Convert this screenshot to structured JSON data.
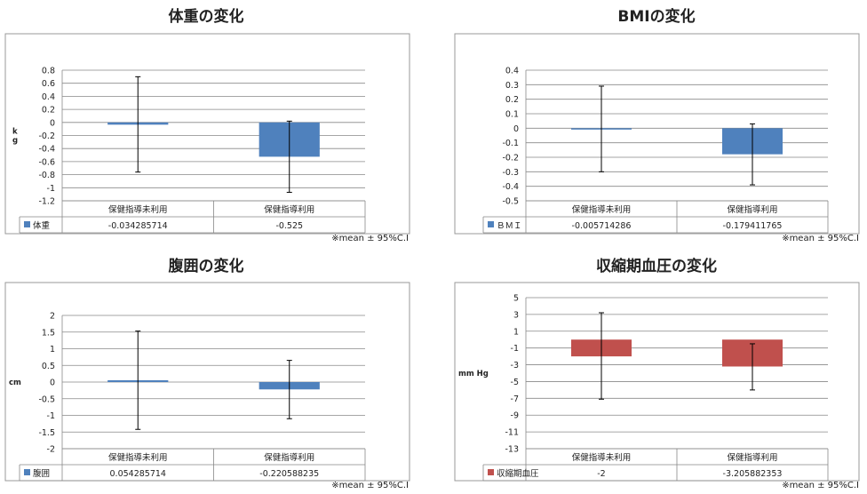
{
  "chart_data": [
    {
      "type": "bar",
      "title": "体重の変化",
      "ylabel": "k\ng",
      "categories": [
        "保健指導未利用",
        "保健指導利用"
      ],
      "series": [
        {
          "name": "体重",
          "values": [
            -0.034285714,
            -0.525
          ],
          "color": "#4f81bd"
        }
      ],
      "value_labels": [
        "-0.034285714",
        "-0.525"
      ],
      "error_bars": [
        {
          "low": -0.76,
          "high": 0.7
        },
        {
          "low": -1.07,
          "high": 0.02
        }
      ],
      "ylim": [
        -1.2,
        0.8
      ],
      "yticks": [
        0.8,
        0.6,
        0.4,
        0.2,
        0,
        -0.2,
        -0.4,
        -0.6,
        -0.8,
        -1,
        -1.2
      ],
      "ytick_labels": [
        "0.8",
        "0.6",
        "0.4",
        "0.2",
        "0",
        "-0.2",
        "-0.4",
        "-0.6",
        "-0.8",
        "-1",
        "-1.2"
      ],
      "grid": true,
      "legend": "data-table",
      "note": "※mean ± 95%C.I"
    },
    {
      "type": "bar",
      "title": "BMIの変化",
      "ylabel": "",
      "categories": [
        "保健指導未利用",
        "保健指導利用"
      ],
      "series": [
        {
          "name": "ＢＭＩ",
          "values": [
            -0.005714286,
            -0.179411765
          ],
          "color": "#4f81bd"
        }
      ],
      "value_labels": [
        "-0.005714286",
        "-0.179411765"
      ],
      "error_bars": [
        {
          "low": -0.3,
          "high": 0.29
        },
        {
          "low": -0.39,
          "high": 0.03
        }
      ],
      "ylim": [
        -0.5,
        0.4
      ],
      "yticks": [
        0.4,
        0.3,
        0.2,
        0.1,
        0,
        -0.1,
        -0.2,
        -0.3,
        -0.4,
        -0.5
      ],
      "ytick_labels": [
        "0.4",
        "0.3",
        "0.2",
        "0.1",
        "0",
        "-0.1",
        "-0.2",
        "-0.3",
        "-0.4",
        "-0.5"
      ],
      "grid": true,
      "legend": "data-table",
      "note": "※mean ± 95%C.I"
    },
    {
      "type": "bar",
      "title": "腹囲の変化",
      "ylabel": "cm",
      "categories": [
        "保健指導未利用",
        "保健指導利用"
      ],
      "series": [
        {
          "name": "腹囲",
          "values": [
            0.054285714,
            -0.220588235
          ],
          "color": "#4f81bd"
        }
      ],
      "value_labels": [
        "0.054285714",
        "-0.220588235"
      ],
      "error_bars": [
        {
          "low": -1.42,
          "high": 1.53
        },
        {
          "low": -1.1,
          "high": 0.65
        }
      ],
      "ylim": [
        -2,
        2
      ],
      "yticks": [
        2,
        1.5,
        1,
        0.5,
        0,
        -0.5,
        -1,
        -1.5,
        -2
      ],
      "ytick_labels": [
        "2",
        "1.5",
        "1",
        "0.5",
        "0",
        "-0.5",
        "-1",
        "-1.5",
        "-2"
      ],
      "grid": true,
      "legend": "data-table",
      "note": "※mean ± 95%C.I"
    },
    {
      "type": "bar",
      "title": "収縮期血圧の変化",
      "ylabel": "mm Hg",
      "categories": [
        "保健指導未利用",
        "保健指導利用"
      ],
      "series": [
        {
          "name": "収縮期血圧",
          "values": [
            -2,
            -3.205882353
          ],
          "color": "#c0504d"
        }
      ],
      "value_labels": [
        "-2",
        "-3.205882353"
      ],
      "error_bars": [
        {
          "low": -7.1,
          "high": 3.2
        },
        {
          "low": -6.0,
          "high": -0.5
        }
      ],
      "ylim": [
        -13,
        5
      ],
      "yticks": [
        5,
        3,
        1,
        -1,
        -3,
        -5,
        -7,
        -9,
        -11,
        -13
      ],
      "ytick_labels": [
        "5",
        "3",
        "1",
        "-1",
        "-3",
        "-5",
        "-7",
        "-9",
        "-11",
        "-13"
      ],
      "grid": true,
      "legend": "data-table",
      "note": "※mean ± 95%C.I"
    }
  ]
}
